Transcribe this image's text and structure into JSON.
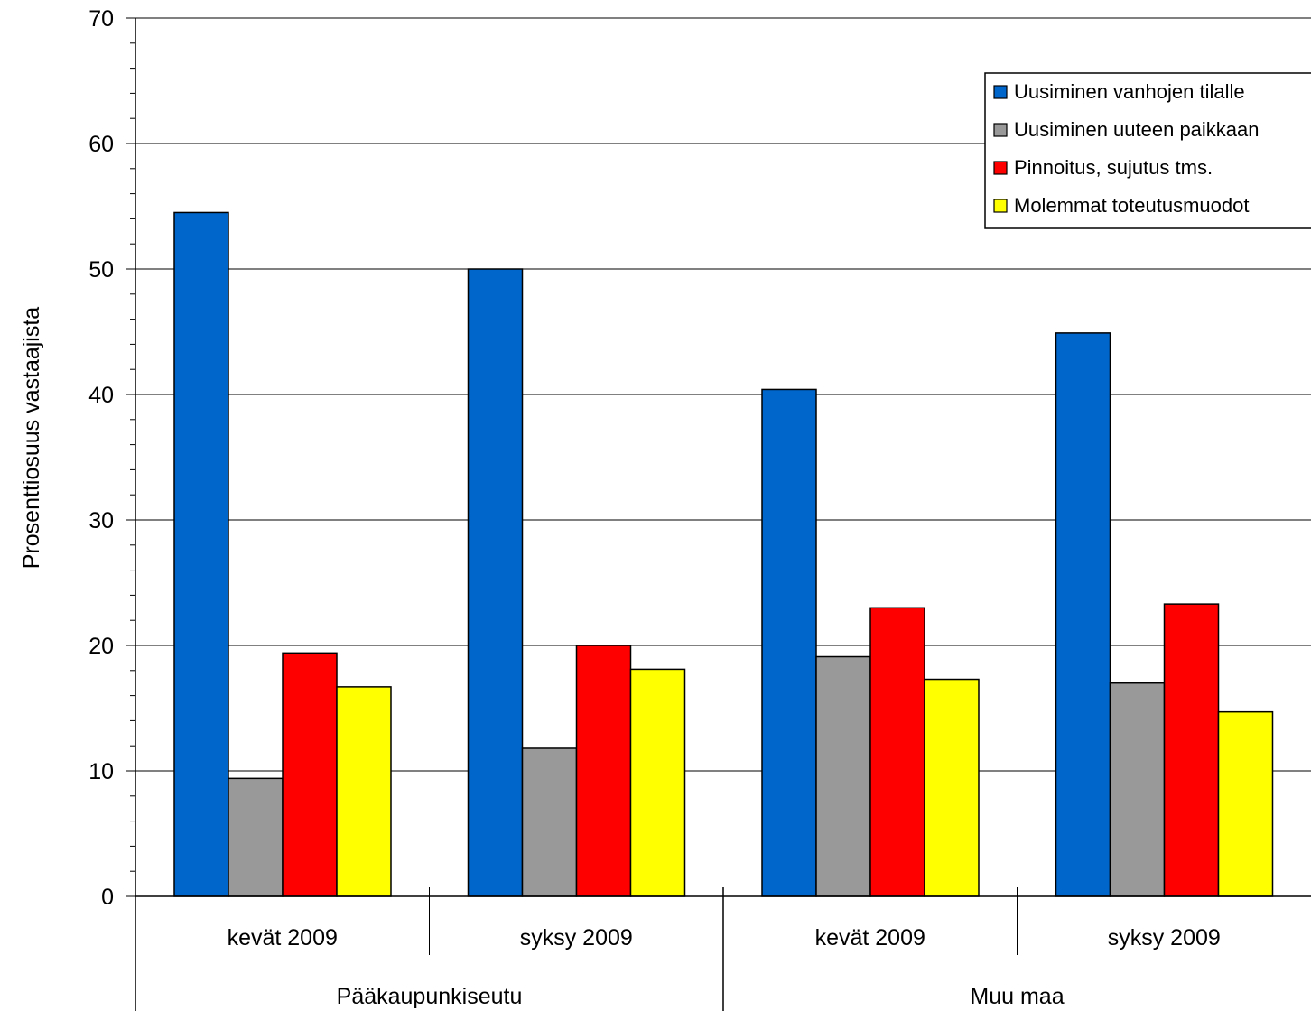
{
  "chart_data": {
    "type": "bar",
    "ylabel": "Prosenttiosuus vastaajista",
    "ylim": [
      0,
      70
    ],
    "ymajor_step": 10,
    "yminor_step": 2,
    "yticks": [
      "0",
      "10",
      "20",
      "30",
      "40",
      "50",
      "60",
      "70"
    ],
    "grid": true,
    "legend_position": "top-right",
    "groups": [
      {
        "label": "Pääkaupunkiseutu",
        "categories": [
          "kevät 2009",
          "syksy 2009"
        ]
      },
      {
        "label": "Muu maa",
        "categories": [
          "kevät 2009",
          "syksy 2009"
        ]
      }
    ],
    "series": [
      {
        "name": "Uusiminen vanhojen tilalle",
        "color": "#0066cc",
        "values": [
          54.5,
          50.0,
          40.4,
          44.9
        ]
      },
      {
        "name": "Uusiminen uuteen paikkaan",
        "color": "#999999",
        "values": [
          9.4,
          11.8,
          19.1,
          17.0
        ]
      },
      {
        "name": "Pinnoitus, sujutus tms.",
        "color": "#ff0000",
        "values": [
          19.4,
          20.0,
          23.0,
          23.3
        ]
      },
      {
        "name": "Molemmat toteutusmuodot",
        "color": "#ffff00",
        "values": [
          16.7,
          18.1,
          17.3,
          14.7
        ]
      }
    ]
  }
}
